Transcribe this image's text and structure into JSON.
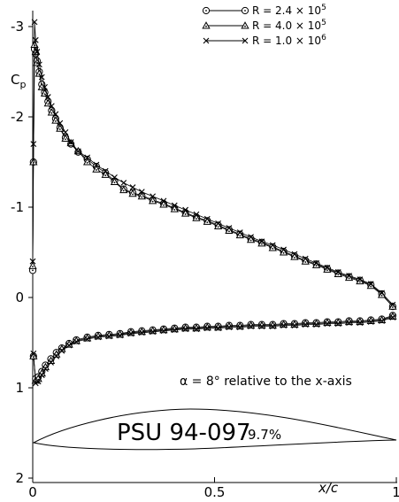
{
  "chart_data": {
    "type": "line",
    "title": "",
    "xlabel": "x/c",
    "ylabel": "Cp",
    "xlim": [
      0,
      1
    ],
    "ylim": [
      -3.1,
      2.0
    ],
    "y_inverted": true,
    "grid": false,
    "legend_placement": "top-right",
    "x_ticks": [
      0,
      0.5,
      1
    ],
    "x_tick_labels": [
      "0",
      "0.5",
      "1"
    ],
    "y_ticks": [
      -3,
      -2,
      -1,
      0,
      1,
      2
    ],
    "y_tick_labels": [
      "-3",
      "-2",
      "-1",
      "0",
      "1",
      "2"
    ],
    "annotation": "α = 8° relative to the x-axis",
    "airfoil_name": "PSU 94-097",
    "airfoil_thickness": "9.7%",
    "series": [
      {
        "name": "R = 2.4 × 10",
        "exponent": "5",
        "marker": "circle-dot",
        "upper": {
          "x": [
            0.0,
            0.002,
            0.005,
            0.008,
            0.012,
            0.018,
            0.025,
            0.033,
            0.042,
            0.052,
            0.063,
            0.075,
            0.09,
            0.105,
            0.125,
            0.15,
            0.175,
            0.2,
            0.225,
            0.25,
            0.275,
            0.3,
            0.33,
            0.36,
            0.39,
            0.42,
            0.45,
            0.48,
            0.51,
            0.54,
            0.57,
            0.6,
            0.63,
            0.66,
            0.69,
            0.72,
            0.75,
            0.78,
            0.81,
            0.84,
            0.87,
            0.9,
            0.93,
            0.96,
            0.99
          ],
          "y": [
            -0.3,
            -1.5,
            -2.75,
            -2.7,
            -2.62,
            -2.5,
            -2.36,
            -2.27,
            -2.17,
            -2.07,
            -1.98,
            -1.88,
            -1.77,
            -1.7,
            -1.61,
            -1.53,
            -1.45,
            -1.38,
            -1.29,
            -1.2,
            -1.16,
            -1.13,
            -1.08,
            -1.04,
            -0.99,
            -0.94,
            -0.89,
            -0.85,
            -0.8,
            -0.75,
            -0.7,
            -0.65,
            -0.61,
            -0.56,
            -0.51,
            -0.46,
            -0.41,
            -0.37,
            -0.32,
            -0.27,
            -0.23,
            -0.19,
            -0.14,
            -0.04,
            0.1
          ]
        },
        "lower": {
          "x": [
            0.002,
            0.008,
            0.015,
            0.025,
            0.035,
            0.05,
            0.065,
            0.08,
            0.1,
            0.12,
            0.15,
            0.18,
            0.21,
            0.24,
            0.27,
            0.3,
            0.33,
            0.36,
            0.39,
            0.42,
            0.45,
            0.48,
            0.51,
            0.54,
            0.57,
            0.6,
            0.63,
            0.66,
            0.69,
            0.72,
            0.75,
            0.78,
            0.81,
            0.84,
            0.87,
            0.9,
            0.93,
            0.96,
            0.99
          ],
          "y": [
            0.65,
            0.9,
            0.88,
            0.82,
            0.75,
            0.68,
            0.61,
            0.56,
            0.51,
            0.47,
            0.44,
            0.42,
            0.41,
            0.4,
            0.38,
            0.37,
            0.36,
            0.35,
            0.34,
            0.33,
            0.33,
            0.32,
            0.32,
            0.31,
            0.31,
            0.3,
            0.3,
            0.3,
            0.29,
            0.29,
            0.28,
            0.28,
            0.27,
            0.27,
            0.26,
            0.26,
            0.25,
            0.24,
            0.2
          ]
        }
      },
      {
        "name": "R = 4.0 × 10",
        "exponent": "5",
        "marker": "triangle-dot",
        "upper": {
          "x": [
            0.0,
            0.002,
            0.005,
            0.008,
            0.012,
            0.018,
            0.025,
            0.033,
            0.042,
            0.052,
            0.063,
            0.075,
            0.09,
            0.105,
            0.125,
            0.15,
            0.175,
            0.2,
            0.225,
            0.25,
            0.275,
            0.3,
            0.33,
            0.36,
            0.39,
            0.42,
            0.45,
            0.48,
            0.51,
            0.54,
            0.57,
            0.6,
            0.63,
            0.66,
            0.69,
            0.72,
            0.75,
            0.78,
            0.81,
            0.84,
            0.87,
            0.9,
            0.93,
            0.96,
            0.99
          ],
          "y": [
            -0.35,
            -1.5,
            -2.8,
            -2.72,
            -2.6,
            -2.48,
            -2.33,
            -2.26,
            -2.15,
            -2.05,
            -1.96,
            -1.87,
            -1.76,
            -1.71,
            -1.62,
            -1.5,
            -1.42,
            -1.36,
            -1.28,
            -1.19,
            -1.15,
            -1.12,
            -1.07,
            -1.03,
            -0.98,
            -0.93,
            -0.88,
            -0.84,
            -0.79,
            -0.74,
            -0.69,
            -0.64,
            -0.6,
            -0.55,
            -0.5,
            -0.45,
            -0.4,
            -0.36,
            -0.31,
            -0.26,
            -0.22,
            -0.18,
            -0.13,
            -0.03,
            0.1
          ]
        },
        "lower": {
          "x": [
            0.002,
            0.008,
            0.015,
            0.025,
            0.035,
            0.05,
            0.065,
            0.08,
            0.1,
            0.12,
            0.15,
            0.18,
            0.21,
            0.24,
            0.27,
            0.3,
            0.33,
            0.36,
            0.39,
            0.42,
            0.45,
            0.48,
            0.51,
            0.54,
            0.57,
            0.6,
            0.63,
            0.66,
            0.69,
            0.72,
            0.75,
            0.78,
            0.81,
            0.84,
            0.87,
            0.9,
            0.93,
            0.96,
            0.99
          ],
          "y": [
            0.65,
            0.92,
            0.9,
            0.84,
            0.77,
            0.7,
            0.63,
            0.57,
            0.52,
            0.48,
            0.45,
            0.43,
            0.42,
            0.41,
            0.39,
            0.38,
            0.37,
            0.36,
            0.35,
            0.34,
            0.34,
            0.33,
            0.33,
            0.32,
            0.32,
            0.31,
            0.31,
            0.31,
            0.3,
            0.3,
            0.29,
            0.29,
            0.28,
            0.28,
            0.27,
            0.27,
            0.26,
            0.25,
            0.21
          ]
        }
      },
      {
        "name": "R = 1.0 × 10",
        "exponent": "6",
        "marker": "cross",
        "upper": {
          "x": [
            0.0,
            0.002,
            0.005,
            0.008,
            0.012,
            0.018,
            0.025,
            0.033,
            0.042,
            0.052,
            0.063,
            0.075,
            0.09,
            0.105,
            0.125,
            0.15,
            0.175,
            0.2,
            0.225,
            0.25,
            0.275,
            0.3,
            0.33,
            0.36,
            0.39,
            0.42,
            0.45,
            0.48,
            0.51,
            0.54,
            0.57,
            0.6,
            0.63,
            0.66,
            0.69,
            0.72,
            0.75,
            0.78,
            0.81,
            0.84,
            0.87,
            0.9,
            0.93,
            0.96,
            0.99
          ],
          "y": [
            -0.4,
            -1.7,
            -3.05,
            -2.85,
            -2.72,
            -2.58,
            -2.44,
            -2.33,
            -2.22,
            -2.12,
            -2.03,
            -1.93,
            -1.83,
            -1.72,
            -1.62,
            -1.55,
            -1.47,
            -1.4,
            -1.33,
            -1.27,
            -1.22,
            -1.17,
            -1.12,
            -1.07,
            -1.02,
            -0.97,
            -0.92,
            -0.87,
            -0.82,
            -0.77,
            -0.72,
            -0.67,
            -0.62,
            -0.58,
            -0.53,
            -0.48,
            -0.43,
            -0.38,
            -0.33,
            -0.28,
            -0.24,
            -0.2,
            -0.15,
            -0.05,
            0.08
          ]
        },
        "lower": {
          "x": [
            0.002,
            0.008,
            0.015,
            0.025,
            0.035,
            0.05,
            0.065,
            0.08,
            0.1,
            0.12,
            0.15,
            0.18,
            0.21,
            0.24,
            0.27,
            0.3,
            0.33,
            0.36,
            0.39,
            0.42,
            0.45,
            0.48,
            0.51,
            0.54,
            0.57,
            0.6,
            0.63,
            0.66,
            0.69,
            0.72,
            0.75,
            0.78,
            0.81,
            0.84,
            0.87,
            0.9,
            0.93,
            0.96,
            0.99
          ],
          "y": [
            0.62,
            0.95,
            0.93,
            0.86,
            0.79,
            0.72,
            0.65,
            0.59,
            0.53,
            0.49,
            0.46,
            0.44,
            0.43,
            0.42,
            0.4,
            0.39,
            0.38,
            0.37,
            0.36,
            0.35,
            0.35,
            0.34,
            0.34,
            0.33,
            0.33,
            0.32,
            0.32,
            0.32,
            0.31,
            0.31,
            0.3,
            0.3,
            0.29,
            0.29,
            0.28,
            0.28,
            0.27,
            0.26,
            0.22
          ]
        }
      }
    ]
  }
}
